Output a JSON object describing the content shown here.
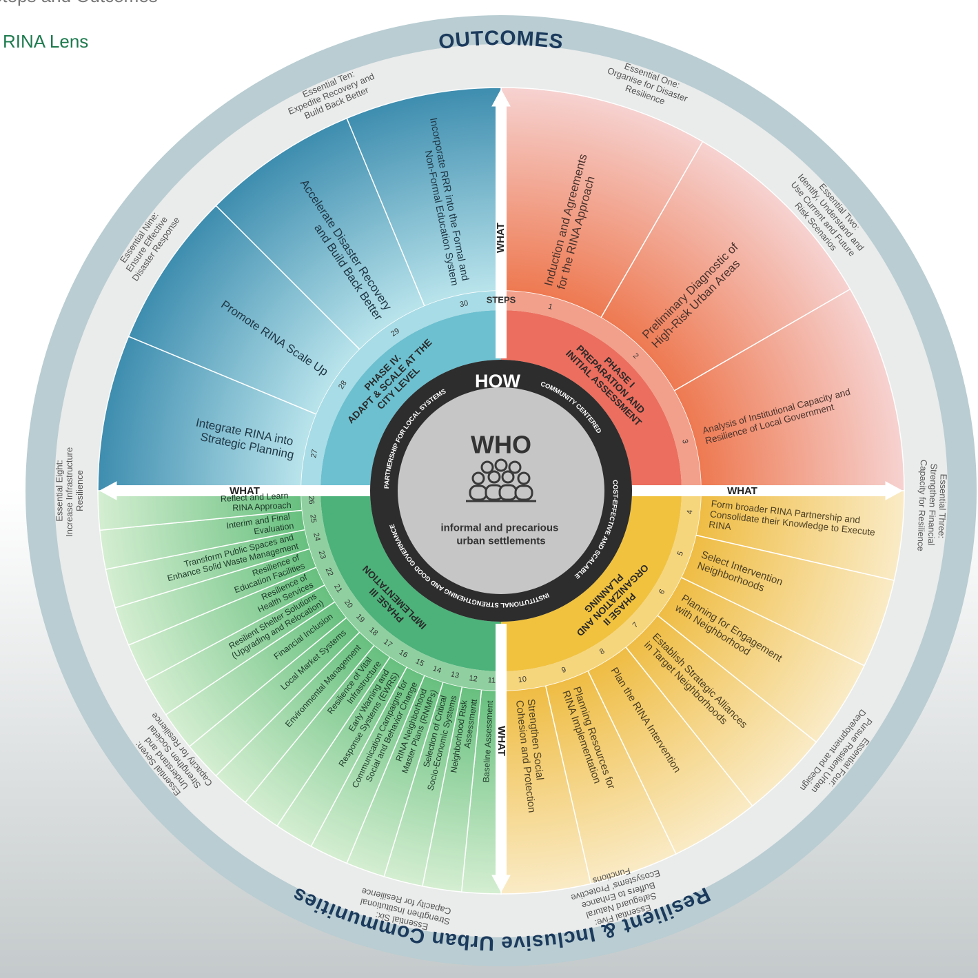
{
  "header": {
    "title": "Steps and Outcomes",
    "subtitle": "RINA Lens"
  },
  "outcomes_label": "OUTCOMES",
  "outcomes_goal": "Resilient & Inclusive Urban Communities",
  "center": {
    "title": "WHO",
    "text": "informal and precarious urban settlements"
  },
  "how": {
    "title": "HOW",
    "principles": [
      "COMMUNITY CENTERED",
      "COST-EFFECTIVE AND SCALABLE",
      "INSTITUTIONAL STRENGTHENING AND GOOD GOVERNANCE",
      "PARTNERSHIP FOR LOCAL SYSTEMS"
    ]
  },
  "steps_label": "STEPS",
  "what_labels": [
    "WHAT",
    "WHAT",
    "WHAT",
    "WHAT"
  ],
  "phases": [
    {
      "title": "PHASE I",
      "subtitle": "PREPARATION AND INITIAL ASSESSMENT",
      "steps": [
        {
          "number": "1",
          "label": "Induction and Agreements for the RINA Approach"
        },
        {
          "number": "2",
          "label": "Preliminary Diagnostic of High-Risk Urban Areas"
        },
        {
          "number": "3",
          "label": "Analysis of Institutional Capacity and Resilience of Local Government"
        }
      ]
    },
    {
      "title": "PHASE II",
      "subtitle": "ORGANIZATION AND PLANNING",
      "steps": [
        {
          "number": "4",
          "label": "Form broader RINA Partnership and Consolidate their Knowledge to Execute RINA"
        },
        {
          "number": "5",
          "label": "Select Intervention Neighborhoods"
        },
        {
          "number": "6",
          "label": "Planning for Engagement with Neighborhood"
        },
        {
          "number": "7",
          "label": "Establish Strategic Alliances in Target Neighborhoods"
        },
        {
          "number": "8",
          "label": "Plan the RINA Intervention"
        },
        {
          "number": "9",
          "label": "Planning Resources for RINA Implementation"
        },
        {
          "number": "10",
          "label": "Strengthen Social Cohesion and Protection"
        }
      ]
    },
    {
      "title": "PHASE III",
      "subtitle": "IMPLEMENTATION",
      "steps": [
        {
          "number": "11",
          "label": "Baseline Assessment"
        },
        {
          "number": "12",
          "label": "Neighborhood Risk Assessmentt"
        },
        {
          "number": "13",
          "label": "Selection of Critical Socio-Economic Systems"
        },
        {
          "number": "14",
          "label": "RINA Neighborhood Master Plans (RNMPs)"
        },
        {
          "number": "15",
          "label": "Communication Campaigns for Social and Behavior Change"
        },
        {
          "number": "16",
          "label": "Early Warning and Response Systems (EWRS)"
        },
        {
          "number": "17",
          "label": "Resilience of Vital Infrastructure"
        },
        {
          "number": "18",
          "label": "Environmental Management"
        },
        {
          "number": "19",
          "label": "Local Market Systems"
        },
        {
          "number": "20",
          "label": "Financial Inclusion"
        },
        {
          "number": "21",
          "label": "Resilient Shelter Solutions (Upgrading and Relocation)"
        },
        {
          "number": "22",
          "label": "Resilience of Health Services"
        },
        {
          "number": "23",
          "label": "Resilience of Education Facilities"
        },
        {
          "number": "24",
          "label": "Transform Public Spaces and Enhance Solid Waste Management"
        },
        {
          "number": "25",
          "label": "Interim and Final Evaluation"
        },
        {
          "number": "26",
          "label": "Reflect and Learn RINA Approach"
        }
      ]
    },
    {
      "title": "PHASE IV.",
      "subtitle": "ADAPT & SCALE AT THE CITY LEVEL",
      "steps": [
        {
          "number": "27",
          "label": "Integrate RINA into Strategic Planning"
        },
        {
          "number": "28",
          "label": "Promote RINA Scale Up"
        },
        {
          "number": "29",
          "label": "Accelerate Disaster Recovery and Build Back Better"
        },
        {
          "number": "30",
          "label": "Incorporate RRR into the Formal and Non-Formal Education System"
        }
      ]
    }
  ],
  "essentials": [
    {
      "label": "Essential One:",
      "text": "Organise for Disaster Resilience"
    },
    {
      "label": "Essential Two:",
      "text": "Identify, Understand and Use Current and Future Risk Scenarios"
    },
    {
      "label": "Essential Three:",
      "text": "Strengthen Financial Capacity for Resilience"
    },
    {
      "label": "Essential Four:",
      "text": "Pursue Resilient Urban Development and Design"
    },
    {
      "label": "Essential Five:",
      "text": "Safeguard Natural Buffers to Enhance Ecosystems' Protective Functions"
    },
    {
      "label": "Essential Six:",
      "text": "Strengthen Institutional Capacity for Resilience"
    },
    {
      "label": "Essential Seven:",
      "text": "Understand and Strengthen Societal Capacity for Resilience"
    },
    {
      "label": "Essential Eight:",
      "text": "Increase Infrastructure Resilience"
    },
    {
      "label": "Essential Nine:",
      "text": "Ensure Effective Disaster Response"
    },
    {
      "label": "Essential Ten:",
      "text": "Expedite Recovery and Build Back Better"
    }
  ]
}
